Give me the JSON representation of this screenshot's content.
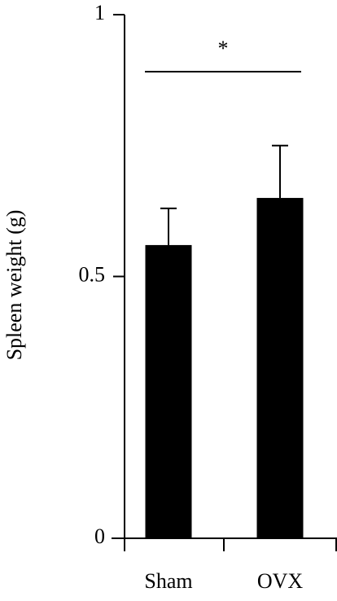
{
  "chart_data": {
    "type": "bar",
    "y_label": "Spleen weight (g)",
    "categories": [
      "Sham",
      "OVX"
    ],
    "values": [
      0.56,
      0.65
    ],
    "errors": [
      0.07,
      0.1
    ],
    "color": "#000000",
    "annotation": "*",
    "ylim": [
      0,
      1
    ],
    "yticks": [
      0,
      0.5,
      1
    ]
  }
}
